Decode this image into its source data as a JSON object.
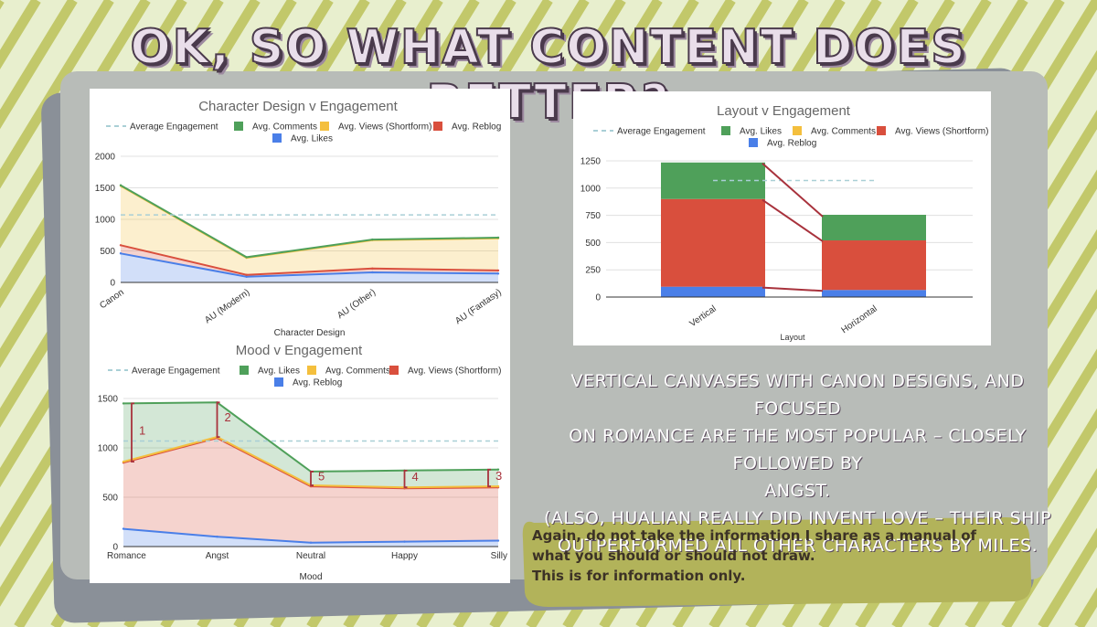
{
  "title": "OK, SO WHAT CONTENT DOES BETTER?",
  "summary": {
    "line1": "VERTICAL CANVASES WITH CANON DESIGNS, AND FOCUSED",
    "line2": "ON ROMANCE ARE THE MOST POPULAR – CLOSELY FOLLOWED BY",
    "line3": "ANGST.",
    "line4": "(ALSO, HUALIAN REALLY DID INVENT LOVE – THEIR SHIP",
    "line5": "OUTPERFORMED ALL OTHER CHARACTERS BY MILES."
  },
  "note": {
    "line1": "Again, do not take the information I share as a manual of",
    "line2": "what you should or should not draw.",
    "line3": "This is for information only."
  },
  "colors": {
    "background": "#e8efce",
    "stripes": "#c2c86a",
    "board": "#b8bcb8",
    "note_bg": "#b2b35a",
    "likes": "#4a7fe8",
    "comments": "#f4bf3d",
    "views": "#d94f3d",
    "reblog_or_comments_green": "#4fa05a",
    "average": "#a9cfd6",
    "annotation": "#a8323c"
  },
  "chart_data": [
    {
      "type": "area",
      "title": "Character Design  v Engagement",
      "xlabel": "Character Design",
      "ylabel": "",
      "ylim": [
        0,
        2000
      ],
      "yticks": [
        0,
        500,
        1000,
        1500,
        2000
      ],
      "categories": [
        "Canon",
        "AU (Modern)",
        "AU (Other)",
        "AU (Fantasy)"
      ],
      "legend": [
        "Average Engagement",
        "Avg. Comments",
        "Avg. Views (Shortform)",
        "Avg. Reblog",
        "Avg. Likes"
      ],
      "legend_position": "top",
      "average_line": 1070,
      "series": [
        {
          "name": "Avg. Likes",
          "color": "#4a7fe8",
          "values": [
            460,
            90,
            160,
            140
          ]
        },
        {
          "name": "Avg. Reblog",
          "color": "#d94f3d",
          "values": [
            130,
            30,
            60,
            50
          ]
        },
        {
          "name": "Avg. Views (Shortform)",
          "color": "#f4bf3d",
          "values": [
            940,
            270,
            450,
            510
          ]
        },
        {
          "name": "Avg. Comments",
          "color": "#4fa05a",
          "values": [
            10,
            10,
            10,
            10
          ]
        }
      ]
    },
    {
      "type": "bar",
      "stacked": true,
      "title": "Layout v Engagement",
      "xlabel": "Layout",
      "ylabel": "",
      "ylim": [
        0,
        1250
      ],
      "yticks": [
        0,
        250,
        500,
        750,
        1000,
        1250
      ],
      "categories": [
        "Vertical",
        "Horizontal"
      ],
      "legend": [
        "Average Engagement",
        "Avg. Likes",
        "Avg. Comments",
        "Avg. Views (Shortform)",
        "Avg. Reblog"
      ],
      "legend_position": "top",
      "average_line": 1070,
      "series": [
        {
          "name": "Avg. Reblog",
          "color": "#4a7fe8",
          "values": [
            95,
            65
          ]
        },
        {
          "name": "Avg. Views (Shortform)",
          "color": "#d94f3d",
          "values": [
            805,
            455
          ]
        },
        {
          "name": "Avg. Comments",
          "color": "#f4bf3d",
          "values": [
            0,
            0
          ]
        },
        {
          "name": "Avg. Likes",
          "color": "#4fa05a",
          "values": [
            335,
            235
          ]
        }
      ]
    },
    {
      "type": "area",
      "title": "Mood v Engagement",
      "xlabel": "Mood",
      "ylabel": "",
      "ylim": [
        0,
        1500
      ],
      "yticks": [
        0,
        500,
        1000,
        1500
      ],
      "categories": [
        "Romance",
        "Angst",
        "Neutral",
        "Happy",
        "Silly"
      ],
      "legend": [
        "Average Engagement",
        "Avg. Likes",
        "Avg. Comments",
        "Avg. Views (Shortform)",
        "Avg. Reblog"
      ],
      "legend_position": "top",
      "average_line": 1070,
      "series": [
        {
          "name": "Avg. Reblog",
          "color": "#4a7fe8",
          "values": [
            180,
            100,
            40,
            50,
            60
          ]
        },
        {
          "name": "Avg. Views (Shortform)",
          "color": "#d94f3d",
          "values": [
            670,
            1000,
            570,
            540,
            540
          ]
        },
        {
          "name": "Avg. Comments",
          "color": "#f4bf3d",
          "values": [
            10,
            10,
            10,
            10,
            10
          ]
        },
        {
          "name": "Avg. Likes",
          "color": "#4fa05a",
          "values": [
            590,
            350,
            140,
            170,
            170
          ]
        }
      ],
      "annotations": [
        "1",
        "2",
        "5",
        "4",
        "3"
      ]
    }
  ]
}
